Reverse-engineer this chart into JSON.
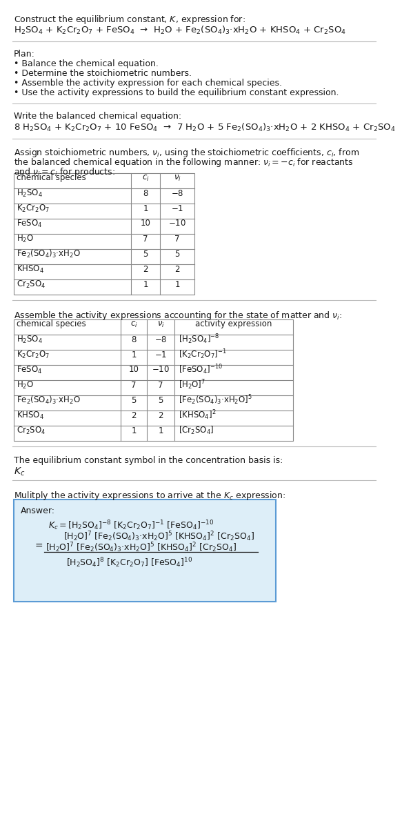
{
  "bg_color": "#ffffff",
  "text_color": "#1a1a1a",
  "table_line_color": "#888888",
  "answer_box_color": "#ddeef8",
  "answer_border_color": "#5b9bd5",
  "font_size": 9.0,
  "mono_font": "DejaVu Sans Mono",
  "sections": {
    "s1_title": "Construct the equilibrium constant, $K$, expression for:",
    "s1_reaction": "H$_2$SO$_4$ + K$_2$Cr$_2$O$_7$ + FeSO$_4$  →  H$_2$O + Fe$_2$(SO$_4$)$_3$·xH$_2$O + KHSO$_4$ + Cr$_2$SO$_4$",
    "s2_plan_title": "Plan:",
    "s2_plan_items": [
      "• Balance the chemical equation.",
      "• Determine the stoichiometric numbers.",
      "• Assemble the activity expression for each chemical species.",
      "• Use the activity expressions to build the equilibrium constant expression."
    ],
    "s3_title": "Write the balanced chemical equation:",
    "s3_reaction": "8 H$_2$SO$_4$ + K$_2$Cr$_2$O$_7$ + 10 FeSO$_4$  →  7 H$_2$O + 5 Fe$_2$(SO$_4$)$_3$·xH$_2$O + 2 KHSO$_4$ + Cr$_2$SO$_4$",
    "s4_text1": "Assign stoichiometric numbers, $\\nu_i$, using the stoichiometric coefficients, $c_i$, from",
    "s4_text2": "the balanced chemical equation in the following manner: $\\nu_i = -c_i$ for reactants",
    "s4_text3": "and $\\nu_i = c_i$ for products:",
    "s5_text": "Assemble the activity expressions accounting for the state of matter and $\\nu_i$:",
    "s6_kc_text": "The equilibrium constant symbol in the concentration basis is:",
    "s6_kc_symbol": "$K_c$",
    "s7_mult_text": "Mulitply the activity expressions to arrive at the $K_c$ expression:",
    "s7_answer_label": "Answer:"
  },
  "table1_headers": [
    "chemical species",
    "$c_i$",
    "$\\nu_i$"
  ],
  "table1_rows": [
    [
      "H$_2$SO$_4$",
      "8",
      "$-8$"
    ],
    [
      "K$_2$Cr$_2$O$_7$",
      "1",
      "$-1$"
    ],
    [
      "FeSO$_4$",
      "10",
      "$-10$"
    ],
    [
      "H$_2$O",
      "7",
      "7"
    ],
    [
      "Fe$_2$(SO$_4$)$_3$·xH$_2$O",
      "5",
      "5"
    ],
    [
      "KHSO$_4$",
      "2",
      "2"
    ],
    [
      "Cr$_2$SO$_4$",
      "1",
      "1"
    ]
  ],
  "table2_headers": [
    "chemical species",
    "$c_i$",
    "$\\nu_i$",
    "activity expression"
  ],
  "table2_rows": [
    [
      "H$_2$SO$_4$",
      "8",
      "$-8$",
      "[H$_2$SO$_4$]$^{-8}$"
    ],
    [
      "K$_2$Cr$_2$O$_7$",
      "1",
      "$-1$",
      "[K$_2$Cr$_2$O$_7$]$^{-1}$"
    ],
    [
      "FeSO$_4$",
      "10",
      "$-10$",
      "[FeSO$_4$]$^{-10}$"
    ],
    [
      "H$_2$O",
      "7",
      "7",
      "[H$_2$O]$^7$"
    ],
    [
      "Fe$_2$(SO$_4$)$_3$·xH$_2$O",
      "5",
      "5",
      "[Fe$_2$(SO$_4$)$_3$·xH$_2$O]$^5$"
    ],
    [
      "KHSO$_4$",
      "2",
      "2",
      "[KHSO$_4$]$^2$"
    ],
    [
      "Cr$_2$SO$_4$",
      "1",
      "1",
      "[Cr$_2$SO$_4$]"
    ]
  ],
  "answer_kc_line1": "$K_c = $[H$_2$SO$_4$]$^{-8}$ [K$_2$Cr$_2$O$_7$]$^{-1}$ [FeSO$_4$]$^{-10}$",
  "answer_kc_line2": "[H$_2$O]$^7$ [Fe$_2$(SO$_4$)$_3$·xH$_2$O]$^5$ [KHSO$_4$]$^2$ [Cr$_2$SO$_4$]",
  "answer_eq_num": "[H$_2$O]$^7$ [Fe$_2$(SO$_4$)$_3$·xH$_2$O]$^5$ [KHSO$_4$]$^2$ [Cr$_2$SO$_4$]",
  "answer_eq_den": "[H$_2$SO$_4$]$^8$ [K$_2$Cr$_2$O$_7$] [FeSO$_4$]$^{10}$"
}
